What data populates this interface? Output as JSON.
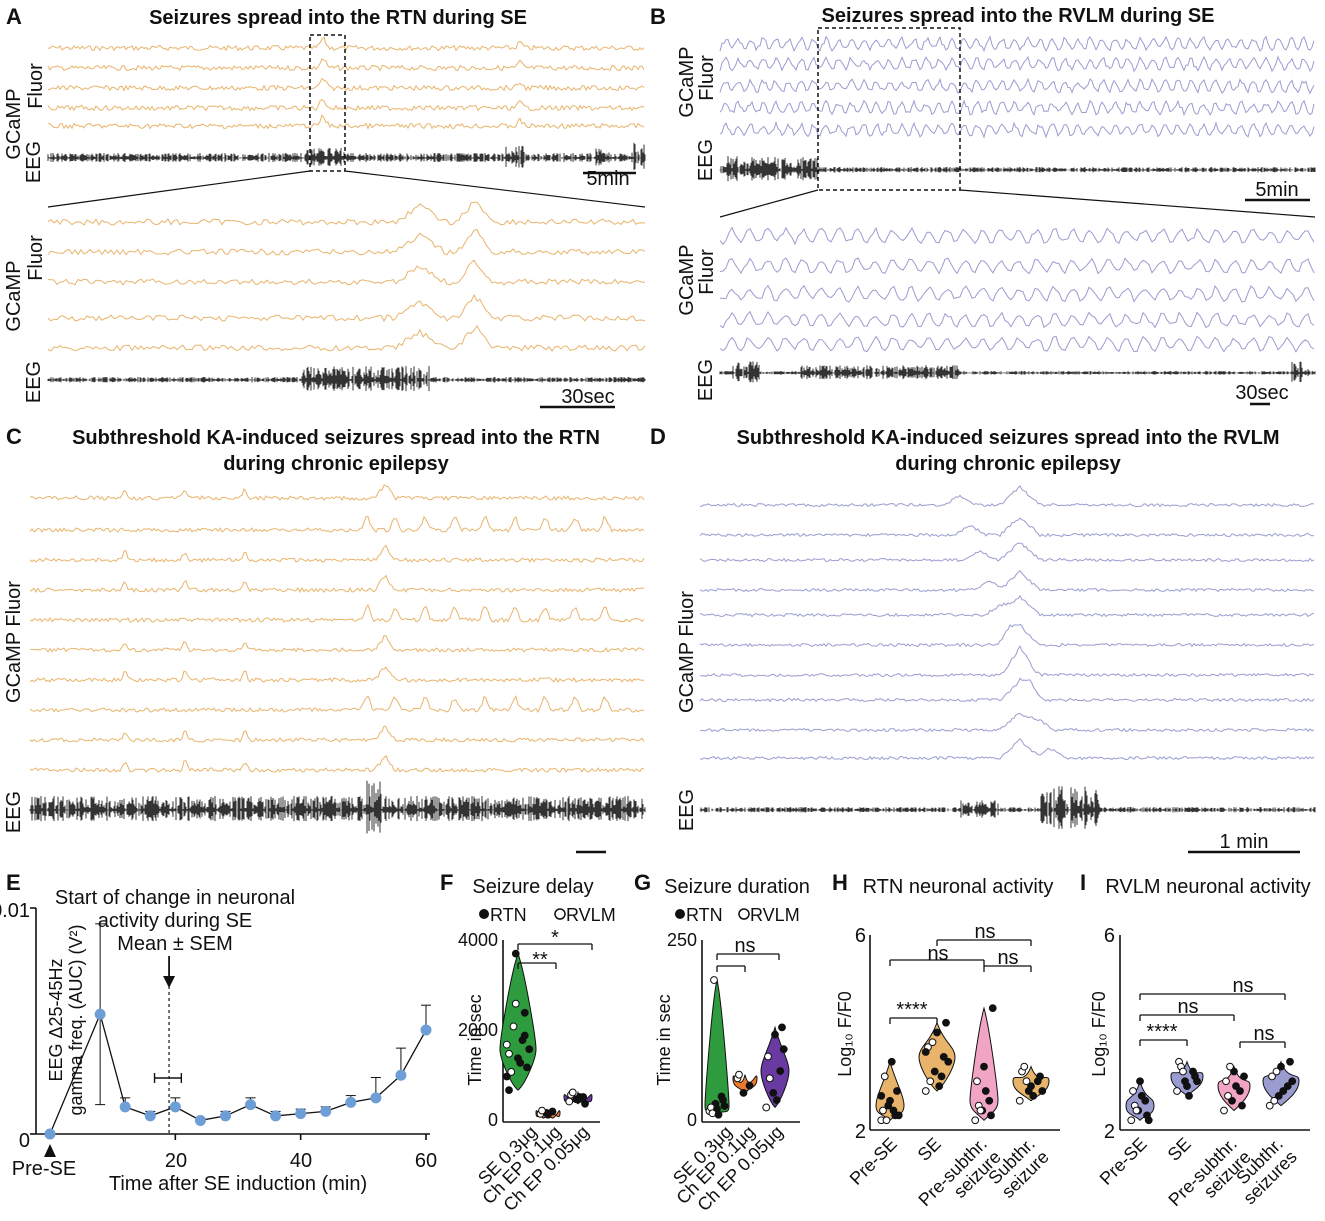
{
  "colors": {
    "rtn": "#E8B46C",
    "rvlm": "#9A9CD0",
    "eeg": "#333333",
    "dot": "#6E9ED6",
    "green": "#2E9B3E",
    "orange": "#EE7A2E",
    "purple": "#6A3AA3",
    "pink": "#F2A4C4"
  },
  "panels": {
    "A": {
      "label": "A",
      "title": "Seizures spread into the RTN during SE",
      "ylab_gcamp1": "GCaMP",
      "ylab_gcamp2": "Fluor",
      "ylab_eeg": "EEG",
      "scale_top": "5min",
      "scale_bottom": "30sec"
    },
    "B": {
      "label": "B",
      "title": "Seizures spread into the RVLM during SE",
      "ylab_gcamp1": "GCaMP",
      "ylab_gcamp2": "Fluor",
      "ylab_eeg": "EEG",
      "scale_top": "5min",
      "scale_bottom": "30sec"
    },
    "C": {
      "label": "C",
      "title1": "Subthreshold KA-induced seizures spread into the RTN",
      "title2": "during chronic epilepsy",
      "ylab_gcamp": "GCaMP Fluor",
      "ylab_eeg": "EEG"
    },
    "D": {
      "label": "D",
      "title1": "Subthreshold KA-induced seizures spread into the RVLM",
      "title2": "during chronic epilepsy",
      "ylab_gcamp": "GCaMP Fluor",
      "ylab_eeg": "EEG",
      "scale": "1 min"
    },
    "E": {
      "label": "E",
      "ann1": "Start of change in neuronal",
      "ann2": "activity during SE",
      "ann3": "Mean ± SEM",
      "ylab1": "EEG Δ25-45Hz",
      "ylab2": "gamma freq. (AUC) (V²)",
      "ytop": "0.01",
      "ybottom": "0",
      "presel": "Pre-SE",
      "xlabel": "Time after SE induction (min)",
      "xticks": [
        "20",
        "40",
        "60"
      ]
    },
    "F": {
      "label": "F",
      "title": "Seizure delay",
      "legend_rtn": "RTN",
      "legend_rvlm": "RVLM",
      "ylab": "Time in sec",
      "yticks": [
        "4000",
        "2000",
        "0"
      ],
      "sig1": "**",
      "sig2": "*",
      "cats": [
        "SE 0.3μg",
        "Ch EP 0.1μg",
        "Ch EP 0.05μg"
      ]
    },
    "G": {
      "label": "G",
      "title": "Seizure duration",
      "legend_rtn": "RTN",
      "legend_rvlm": "RVLM",
      "ylab": "Time in sec",
      "yticks": [
        "250",
        "0"
      ],
      "sig": "ns",
      "cats": [
        "SE 0.3μg",
        "Ch EP 0.1μg",
        "Ch EP 0.05μg"
      ]
    },
    "H": {
      "label": "H",
      "title": "RTN neuronal activity",
      "ylab": "Log₁₀ F/F0",
      "yticks": [
        "6",
        "2"
      ],
      "sig_a": "****",
      "sig_b": "ns",
      "sig_c": "ns",
      "sig_d": "ns",
      "cats": [
        [
          "Pre-SE"
        ],
        [
          "SE"
        ],
        [
          "Pre-subthr.",
          "seizure"
        ],
        [
          "Subthr.",
          "seizure"
        ]
      ]
    },
    "I": {
      "label": "I",
      "title": "RVLM neuronal activity",
      "ylab": "Log₁₀ F/F0",
      "yticks": [
        "6",
        "2"
      ],
      "sig_a": "****",
      "sig_b": "ns",
      "sig_c": "ns",
      "sig_d": "ns",
      "cats": [
        [
          "Pre-SE"
        ],
        [
          "SE"
        ],
        [
          "Pre-subthr.",
          "seizure"
        ],
        [
          "Subthr.",
          "seizures"
        ]
      ]
    }
  },
  "chart_data": [
    {
      "panel": "E",
      "type": "line",
      "title": "EEG Δ25-45Hz gamma freq. (AUC) (V²)",
      "xlabel": "Time after SE induction (min)",
      "ylabel": "EEG Δ25-45Hz gamma freq. (AUC) (V²)",
      "xlim": [
        0,
        60
      ],
      "ylim": [
        0,
        0.01
      ],
      "x": [
        0,
        8,
        12,
        16,
        20,
        24,
        28,
        32,
        36,
        40,
        44,
        48,
        52,
        56,
        60
      ],
      "y": [
        0.0,
        0.0053,
        0.0012,
        0.0008,
        0.0012,
        0.0006,
        0.0008,
        0.0013,
        0.0008,
        0.0009,
        0.001,
        0.0014,
        0.0016,
        0.0026,
        0.0046
      ],
      "err": [
        0.0,
        0.004,
        0.0004,
        0.0002,
        0.0004,
        0.0001,
        0.0002,
        0.0003,
        0.0002,
        0.0002,
        0.0002,
        0.0003,
        0.0009,
        0.0012,
        0.0011
      ],
      "marker": {
        "x": 19,
        "label": "Start of change in neuronal activity during SE",
        "range": [
          17,
          20
        ]
      }
    },
    {
      "panel": "F",
      "type": "violin",
      "title": "Seizure delay",
      "ylabel": "Time in sec",
      "ylim": [
        0,
        4000
      ],
      "categories": [
        "SE 0.3μg",
        "Ch EP 0.1μg",
        "Ch EP 0.05μg"
      ],
      "values": [
        [
          1700,
          3700,
          2400,
          1500,
          1400,
          1200,
          1100,
          1300,
          1600,
          2100,
          1800,
          1000,
          2600,
          1900,
          700
        ],
        [
          180,
          200,
          230,
          250,
          160
        ],
        [
          450,
          500,
          550,
          600,
          500,
          400,
          650,
          550
        ]
      ],
      "comparisons": [
        [
          "SE 0.3μg",
          "Ch EP 0.1μg",
          "**"
        ],
        [
          "SE 0.3μg",
          "Ch EP 0.05μg",
          "*"
        ]
      ]
    },
    {
      "panel": "G",
      "type": "violin",
      "title": "Seizure duration",
      "ylabel": "Time in sec",
      "ylim": [
        0,
        250
      ],
      "categories": [
        "SE 0.3μg",
        "Ch EP 0.1μg",
        "Ch EP 0.05μg"
      ],
      "values": [
        [
          15,
          25,
          35,
          20,
          18,
          30,
          12,
          10,
          22,
          195
        ],
        [
          60,
          40,
          50,
          65
        ],
        [
          20,
          40,
          70,
          90,
          120,
          130,
          60,
          30,
          100
        ]
      ],
      "comparisons": [
        [
          "SE 0.3μg",
          "Ch EP 0.1μg",
          ""
        ],
        [
          "SE 0.3μg",
          "Ch EP 0.05μg",
          "ns"
        ]
      ]
    },
    {
      "panel": "H",
      "type": "violin",
      "title": "RTN neuronal activity",
      "ylabel": "Log10 F/F0",
      "ylim": [
        2,
        6
      ],
      "categories": [
        "Pre-SE",
        "SE",
        "Pre-subthr. seizure",
        "Subthr. seizure"
      ],
      "values": [
        [
          2.2,
          2.5,
          2.3,
          2.4,
          2.6,
          2.8,
          3.1,
          3.4,
          2.3,
          2.2,
          2.4,
          2.7
        ],
        [
          2.8,
          3.2,
          3.5,
          3.7,
          4.0,
          4.2,
          3.0,
          2.9,
          3.4,
          3.8,
          3.1,
          3.6
        ],
        [
          2.2,
          2.4,
          2.6,
          3.0,
          3.3,
          2.3,
          2.5,
          2.8,
          4.5,
          2.4
        ],
        [
          2.6,
          2.8,
          3.0,
          3.2,
          2.9,
          3.1,
          3.3,
          2.7,
          2.8,
          3.0
        ]
      ],
      "comparisons": [
        [
          "Pre-SE",
          "SE",
          "****"
        ],
        [
          "Pre-SE",
          "Pre-subthr. seizure",
          "ns"
        ],
        [
          "SE",
          "Subthr. seizure",
          "ns"
        ],
        [
          "Pre-subthr. seizure",
          "Subthr. seizure",
          "ns"
        ]
      ]
    },
    {
      "panel": "I",
      "type": "violin",
      "title": "RVLM neuronal activity",
      "ylabel": "Log10 F/F0",
      "ylim": [
        2,
        6
      ],
      "categories": [
        "Pre-SE",
        "SE",
        "Pre-subthr. seizure",
        "Subthr. seizures"
      ],
      "values": [
        [
          2.2,
          2.4,
          2.6,
          2.8,
          3.0,
          2.3,
          2.5,
          2.7,
          2.2,
          2.4
        ],
        [
          2.8,
          3.0,
          3.2,
          3.4,
          2.9,
          3.1,
          3.3,
          2.7,
          3.0,
          3.2
        ],
        [
          2.4,
          2.6,
          2.8,
          3.0,
          3.2,
          2.5,
          2.7,
          2.9,
          3.1,
          3.3
        ],
        [
          2.5,
          2.7,
          2.9,
          3.1,
          3.3,
          3.4,
          2.6,
          2.8,
          3.0,
          3.2
        ]
      ],
      "comparisons": [
        [
          "Pre-SE",
          "SE",
          "****"
        ],
        [
          "Pre-SE",
          "Pre-subthr. seizure",
          "ns"
        ],
        [
          "Pre-SE",
          "Subthr. seizures",
          "ns"
        ],
        [
          "SE",
          "Pre-subthr. seizure",
          "ns"
        ]
      ]
    }
  ]
}
